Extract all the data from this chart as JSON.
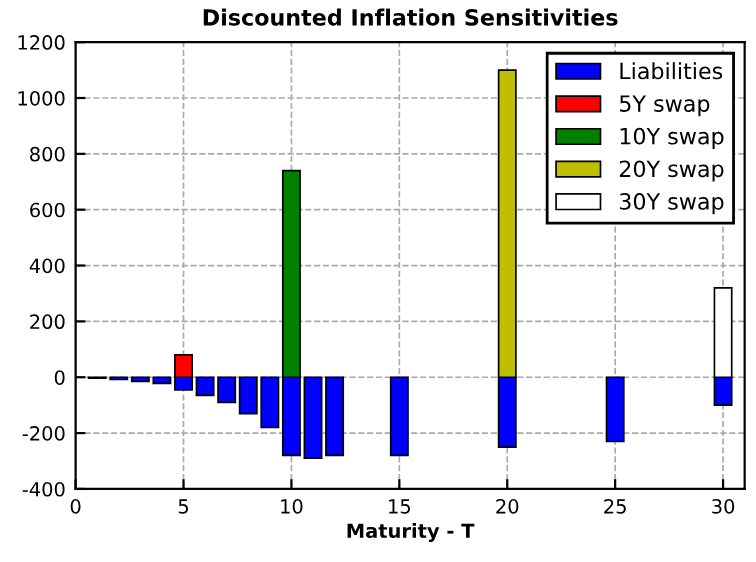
{
  "chart_data": {
    "type": "bar",
    "title": "Discounted Inflation Sensitivities",
    "xlabel": "Maturity - T",
    "series": [
      {
        "name": "Liabilities",
        "color": "#0000ff",
        "x": [
          1,
          2,
          3,
          4,
          5,
          6,
          7,
          8,
          9,
          10,
          11,
          12,
          15,
          20,
          25,
          30
        ],
        "values": [
          -3,
          -8,
          -15,
          -22,
          -45,
          -65,
          -90,
          -130,
          -180,
          -280,
          -290,
          -280,
          -280,
          -250,
          -230,
          -100
        ]
      },
      {
        "name": "5Y swap",
        "color": "#ff0000",
        "x": [
          5
        ],
        "values": [
          80
        ]
      },
      {
        "name": "10Y swap",
        "color": "#008000",
        "x": [
          10
        ],
        "values": [
          740
        ]
      },
      {
        "name": "20Y swap",
        "color": "#bfbf00",
        "x": [
          20
        ],
        "values": [
          1100
        ]
      },
      {
        "name": "30Y swap",
        "color": "#ffffff",
        "x": [
          30
        ],
        "values": [
          320
        ]
      }
    ],
    "xlim": [
      0,
      31
    ],
    "xticks": [
      0,
      5,
      10,
      15,
      20,
      25,
      30
    ],
    "ylim": [
      -400,
      1200
    ],
    "yticks": [
      -400,
      -200,
      0,
      200,
      400,
      600,
      800,
      1000,
      1200
    ],
    "grid": true,
    "legend": "top right"
  }
}
